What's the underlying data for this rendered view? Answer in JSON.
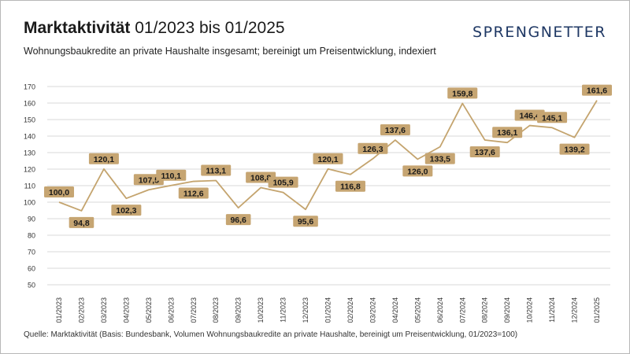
{
  "header": {
    "title_bold": "Marktaktivität",
    "title_rest": "01/2023 bis 01/2025",
    "subtitle": "Wohnungsbaukredite an private Haushalte insgesamt; bereinigt um Preisentwicklung, indexiert"
  },
  "brand": {
    "logo_text": "SPRENGNETTER",
    "color": "#1f3864"
  },
  "source": "Quelle: Marktaktivität (Basis: Bundesbank, Volumen Wohnungsbaukredite an private Haushalte, bereinigt um Preisentwicklung, 01/2023=100)",
  "chart_data": {
    "type": "line",
    "categories": [
      "01/2023",
      "02/2023",
      "03/2023",
      "04/2023",
      "05/2023",
      "06/2023",
      "07/2023",
      "08/2023",
      "09/2023",
      "10/2023",
      "11/2023",
      "12/2023",
      "01/2024",
      "02/2024",
      "03/2024",
      "04/2024",
      "05/2024",
      "06/2024",
      "07/2024",
      "08/2024",
      "09/2024",
      "10/2024",
      "11/2024",
      "12/2024",
      "01/2025"
    ],
    "values": [
      100.0,
      94.8,
      120.1,
      102.3,
      107.5,
      110.1,
      112.6,
      113.1,
      96.6,
      108.8,
      105.9,
      95.6,
      120.1,
      116.8,
      126.3,
      137.6,
      126.0,
      133.5,
      159.8,
      137.6,
      136.1,
      146.4,
      145.1,
      139.2,
      161.6
    ],
    "data_labels": [
      "100,0",
      "94,8",
      "120,1",
      "102,3",
      "107,5",
      "110,1",
      "112,6",
      "113,1",
      "96,6",
      "108,8",
      "105,9",
      "95,6",
      "120,1",
      "116,8",
      "126,3",
      "137,6",
      "126,0",
      "133,5",
      "159,8",
      "137,6",
      "136,1",
      "146,4",
      "145,1",
      "139,2",
      "161,6"
    ],
    "label_placement": [
      "above",
      "below",
      "above",
      "below",
      "above",
      "above",
      "below",
      "above",
      "below",
      "above",
      "above",
      "below",
      "above",
      "below",
      "above",
      "above",
      "below",
      "below",
      "above",
      "below",
      "above",
      "above",
      "above",
      "below",
      "above"
    ],
    "y_ticks": [
      "50",
      "60",
      "70",
      "80",
      "90",
      "100",
      "110",
      "120",
      "130",
      "140",
      "150",
      "160",
      "170"
    ],
    "ylim": [
      50,
      170
    ],
    "grid": true,
    "colors": {
      "line": "#c4a46e",
      "label_bg": "#c6a572",
      "label_text": "#1a1a1a",
      "grid": "#d9d9d9"
    }
  }
}
